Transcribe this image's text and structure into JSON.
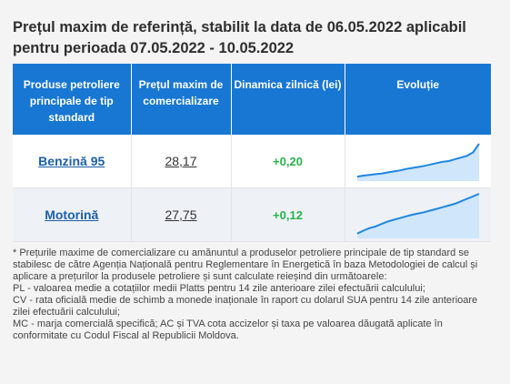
{
  "title": "Prețul maxim de referință, stabilit la data de 06.05.2022 aplicabil pentru perioada 07.05.2022 - 10.05.2022",
  "table": {
    "headers": [
      "Produse petroliere principale de tip standard",
      "Prețul maxim de comercializare",
      "Dinamica zilnică (lei)",
      "Evoluție"
    ],
    "rows": [
      {
        "product": "Benzină 95",
        "price": "28,17",
        "change": "+0,20",
        "evolution": [
          0.05,
          0.08,
          0.1,
          0.12,
          0.14,
          0.17,
          0.2,
          0.23,
          0.27,
          0.3,
          0.33,
          0.36,
          0.4,
          0.44,
          0.48,
          0.5,
          0.55,
          0.6,
          0.65,
          0.75,
          1.0
        ]
      },
      {
        "product": "Motorină",
        "price": "27,75",
        "change": "+0,12",
        "evolution": [
          0.05,
          0.12,
          0.18,
          0.22,
          0.28,
          0.34,
          0.38,
          0.42,
          0.46,
          0.5,
          0.53,
          0.56,
          0.6,
          0.64,
          0.68,
          0.72,
          0.76,
          0.82,
          0.88,
          0.94,
          1.0
        ]
      }
    ]
  },
  "notes": [
    "* Prețurile maxime de comercializare cu amănuntul a produselor petroliere principale de tip standard se stabilesc de către Agenția Națională pentru Reglementare în Energetică în baza Metodologiei de calcul și aplicare a prețurilor la produsele petroliere și sunt calculate reieșind din următoarele:",
    "PL - valoarea medie a cotațiilor medii Platts pentru 14 zile anterioare zilei efectuării calculului;",
    "CV - rata oficială medie de schimb a monede inaționale în raport cu dolarul SUA pentru 14 zile anterioare zilei efectuării calculului;",
    "MC - marja comercială specifică; AC și TVA cota accizelor și taxa pe valoarea dăugată aplicate în conformitate cu Codul Fiscal al Republicii Moldova."
  ],
  "colors": {
    "header_bg": "#1877d2",
    "link": "#1d5fa8",
    "change_positive": "#2bb24c",
    "spark_line": "#1f86e0",
    "spark_fill": "#cfe6fb"
  }
}
